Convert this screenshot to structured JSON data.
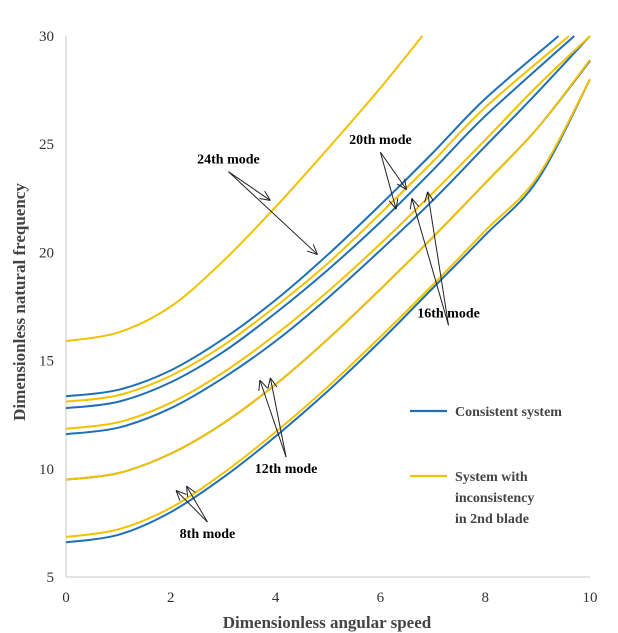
{
  "chart_data": {
    "type": "line",
    "title": "",
    "xlabel": "Dimensionless angular speed",
    "ylabel": "Dimensionless natural frequency",
    "xlim": [
      0,
      10
    ],
    "ylim": [
      5,
      30
    ],
    "xticks": [
      0,
      2,
      4,
      6,
      8,
      10
    ],
    "yticks": [
      5,
      10,
      15,
      20,
      25,
      30
    ],
    "grid": false,
    "legend_position": "right",
    "colors": {
      "consistent": "#1f6fb5",
      "inconsistent": "#f2c200"
    },
    "legend": [
      {
        "label": "Consistent system",
        "color": "#1f6fb5"
      },
      {
        "label": "System with inconsistency in 2nd blade",
        "color": "#f2c200"
      }
    ],
    "series": [
      {
        "name": "Consistent system",
        "color": "#1f6fb5",
        "curves": [
          {
            "x": [
              0,
              1,
              2,
              3,
              4,
              5,
              6,
              7,
              8,
              9,
              10
            ],
            "y": [
              6.6,
              6.95,
              8.0,
              9.6,
              11.5,
              13.6,
              15.9,
              18.35,
              20.8,
              23.35,
              28.0
            ]
          },
          {
            "x": [
              0,
              1,
              2,
              3,
              4,
              5,
              6,
              7,
              8,
              9,
              10
            ],
            "y": [
              9.5,
              9.8,
              10.7,
              12.1,
              13.9,
              16.0,
              18.3,
              20.7,
              23.2,
              25.75,
              28.85
            ]
          },
          {
            "x": [
              0,
              1,
              2,
              3,
              4,
              5,
              6,
              7,
              8,
              9,
              10
            ],
            "y": [
              11.6,
              11.9,
              12.8,
              14.2,
              15.9,
              17.9,
              20.1,
              22.4,
              24.9,
              27.4,
              30.0
            ]
          },
          {
            "x": [
              0,
              1,
              2,
              3,
              4,
              5,
              6,
              7,
              8,
              9.7
            ],
            "y": [
              12.8,
              13.1,
              14.0,
              15.4,
              17.2,
              19.2,
              21.4,
              23.8,
              26.3,
              30.0
            ]
          },
          {
            "x": [
              0,
              1,
              2,
              3,
              4,
              5,
              6,
              7,
              8,
              9.4
            ],
            "y": [
              13.35,
              13.65,
              14.55,
              16.0,
              17.8,
              19.9,
              22.2,
              24.6,
              27.1,
              30.0
            ]
          }
        ]
      },
      {
        "name": "System with inconsistency in 2nd blade",
        "color": "#f2c200",
        "curves": [
          {
            "x": [
              0,
              1,
              2,
              3,
              4,
              5,
              6,
              7,
              8,
              9,
              10
            ],
            "y": [
              6.85,
              7.2,
              8.2,
              9.8,
              11.7,
              13.8,
              16.1,
              18.5,
              21.0,
              23.5,
              28.0
            ]
          },
          {
            "x": [
              0,
              1,
              2,
              3,
              4,
              5,
              6,
              7,
              8,
              9,
              10
            ],
            "y": [
              9.5,
              9.8,
              10.7,
              12.1,
              13.9,
              16.0,
              18.3,
              20.7,
              23.2,
              25.75,
              28.9
            ]
          },
          {
            "x": [
              0,
              1,
              2,
              3,
              4,
              5,
              6,
              7,
              8,
              9,
              10
            ],
            "y": [
              11.85,
              12.15,
              13.05,
              14.45,
              16.2,
              18.2,
              20.4,
              22.75,
              25.2,
              27.7,
              30.0
            ]
          },
          {
            "x": [
              0,
              1,
              2,
              3,
              4,
              5,
              6,
              7,
              8,
              9.6
            ],
            "y": [
              13.1,
              13.4,
              14.3,
              15.7,
              17.5,
              19.5,
              21.8,
              24.2,
              26.7,
              30.0
            ]
          },
          {
            "x": [
              0,
              1,
              2,
              3,
              4,
              5,
              6,
              6.8
            ],
            "y": [
              15.9,
              16.3,
              17.5,
              19.6,
              22.1,
              24.8,
              27.6,
              30.0
            ]
          }
        ]
      }
    ],
    "annotations": [
      {
        "text": "24th mode",
        "tx": 3.1,
        "ty": 24.1,
        "targets": [
          [
            3.9,
            22.4
          ],
          [
            4.8,
            19.9
          ]
        ]
      },
      {
        "text": "20th mode",
        "tx": 6.0,
        "ty": 25.0,
        "targets": [
          [
            6.3,
            22.0
          ],
          [
            6.5,
            22.9
          ]
        ]
      },
      {
        "text": "16th mode",
        "tx": 7.3,
        "ty": 17.0,
        "targets": [
          [
            6.6,
            22.5
          ],
          [
            6.9,
            22.8
          ]
        ]
      },
      {
        "text": "12th mode",
        "tx": 4.2,
        "ty": 9.8,
        "targets": [
          [
            3.7,
            14.1
          ],
          [
            3.9,
            14.2
          ]
        ]
      },
      {
        "text": "8th mode",
        "tx": 2.7,
        "ty": 6.8,
        "targets": [
          [
            2.1,
            9.0
          ],
          [
            2.3,
            9.2
          ]
        ]
      }
    ]
  }
}
